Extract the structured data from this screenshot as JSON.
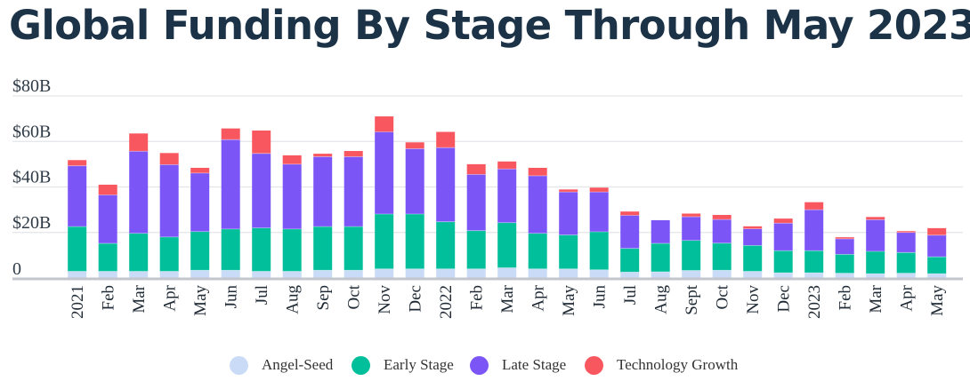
{
  "chart_data": {
    "type": "bar",
    "stacked": true,
    "title": "Global Funding By Stage Through May 2023",
    "xlabel": "",
    "ylabel": "",
    "ylim": [
      0,
      80
    ],
    "yticks": [
      0,
      20,
      40,
      60,
      80
    ],
    "ytick_labels": [
      "0",
      "$20B",
      "$40B",
      "$60B",
      "$80B"
    ],
    "grid": true,
    "legend_position": "bottom",
    "categories": [
      "2021",
      "Feb",
      "Mar",
      "Apr",
      "May",
      "Jun",
      "Jul",
      "Aug",
      "Sep",
      "Oct",
      "Nov",
      "Dec",
      "2022",
      "Feb",
      "Mar",
      "Apr",
      "May",
      "Jun",
      "Jul",
      "Aug",
      "Sept",
      "Oct",
      "Nov",
      "Dec",
      "2023",
      "Feb",
      "Mar",
      "Apr",
      "May"
    ],
    "series": [
      {
        "name": "Angel-Seed",
        "color": "#c9dbf7",
        "values": [
          2.9,
          2.9,
          2.9,
          2.9,
          3.4,
          3.4,
          2.9,
          2.9,
          3.4,
          3.4,
          4.0,
          4.0,
          4.0,
          4.0,
          4.5,
          4.0,
          4.0,
          3.6,
          2.6,
          2.7,
          3.3,
          3.4,
          2.9,
          2.3,
          2.3,
          2.1,
          1.9,
          2.1,
          1.9
        ]
      },
      {
        "name": "Early Stage",
        "color": "#00bf9a",
        "values": [
          19.7,
          12.3,
          16.7,
          15.1,
          17.0,
          18.1,
          19.1,
          18.6,
          19.2,
          19.2,
          24.1,
          24.1,
          20.7,
          16.8,
          19.8,
          15.6,
          14.9,
          16.7,
          10.4,
          12.5,
          13.2,
          11.9,
          11.4,
          9.7,
          9.7,
          8.3,
          9.8,
          9.1,
          7.4
        ]
      },
      {
        "name": "Late Stage",
        "color": "#7c55f7",
        "values": [
          26.7,
          21.3,
          36.1,
          31.8,
          25.7,
          39.3,
          32.7,
          28.5,
          30.7,
          30.7,
          36.1,
          28.7,
          32.6,
          24.7,
          23.6,
          25.3,
          18.9,
          17.5,
          14.5,
          10.2,
          10.4,
          10.4,
          7.3,
          12.1,
          18.0,
          6.8,
          13.9,
          8.8,
          9.5
        ]
      },
      {
        "name": "Technology Growth",
        "color": "#f9575f",
        "values": [
          2.5,
          4.5,
          7.8,
          5.1,
          2.3,
          4.9,
          10.1,
          3.9,
          1.3,
          2.5,
          6.8,
          2.8,
          6.9,
          4.5,
          3.3,
          3.5,
          1.1,
          1.9,
          1.7,
          0.0,
          1.4,
          2.0,
          1.1,
          2.0,
          3.3,
          0.7,
          1.2,
          0.6,
          3.1
        ]
      }
    ]
  },
  "legend": [
    {
      "label": "Angel-Seed",
      "color": "#c9dbf7"
    },
    {
      "label": "Early Stage",
      "color": "#00bf9a"
    },
    {
      "label": "Late Stage",
      "color": "#7c55f7"
    },
    {
      "label": "Technology Growth",
      "color": "#f9575f"
    }
  ]
}
